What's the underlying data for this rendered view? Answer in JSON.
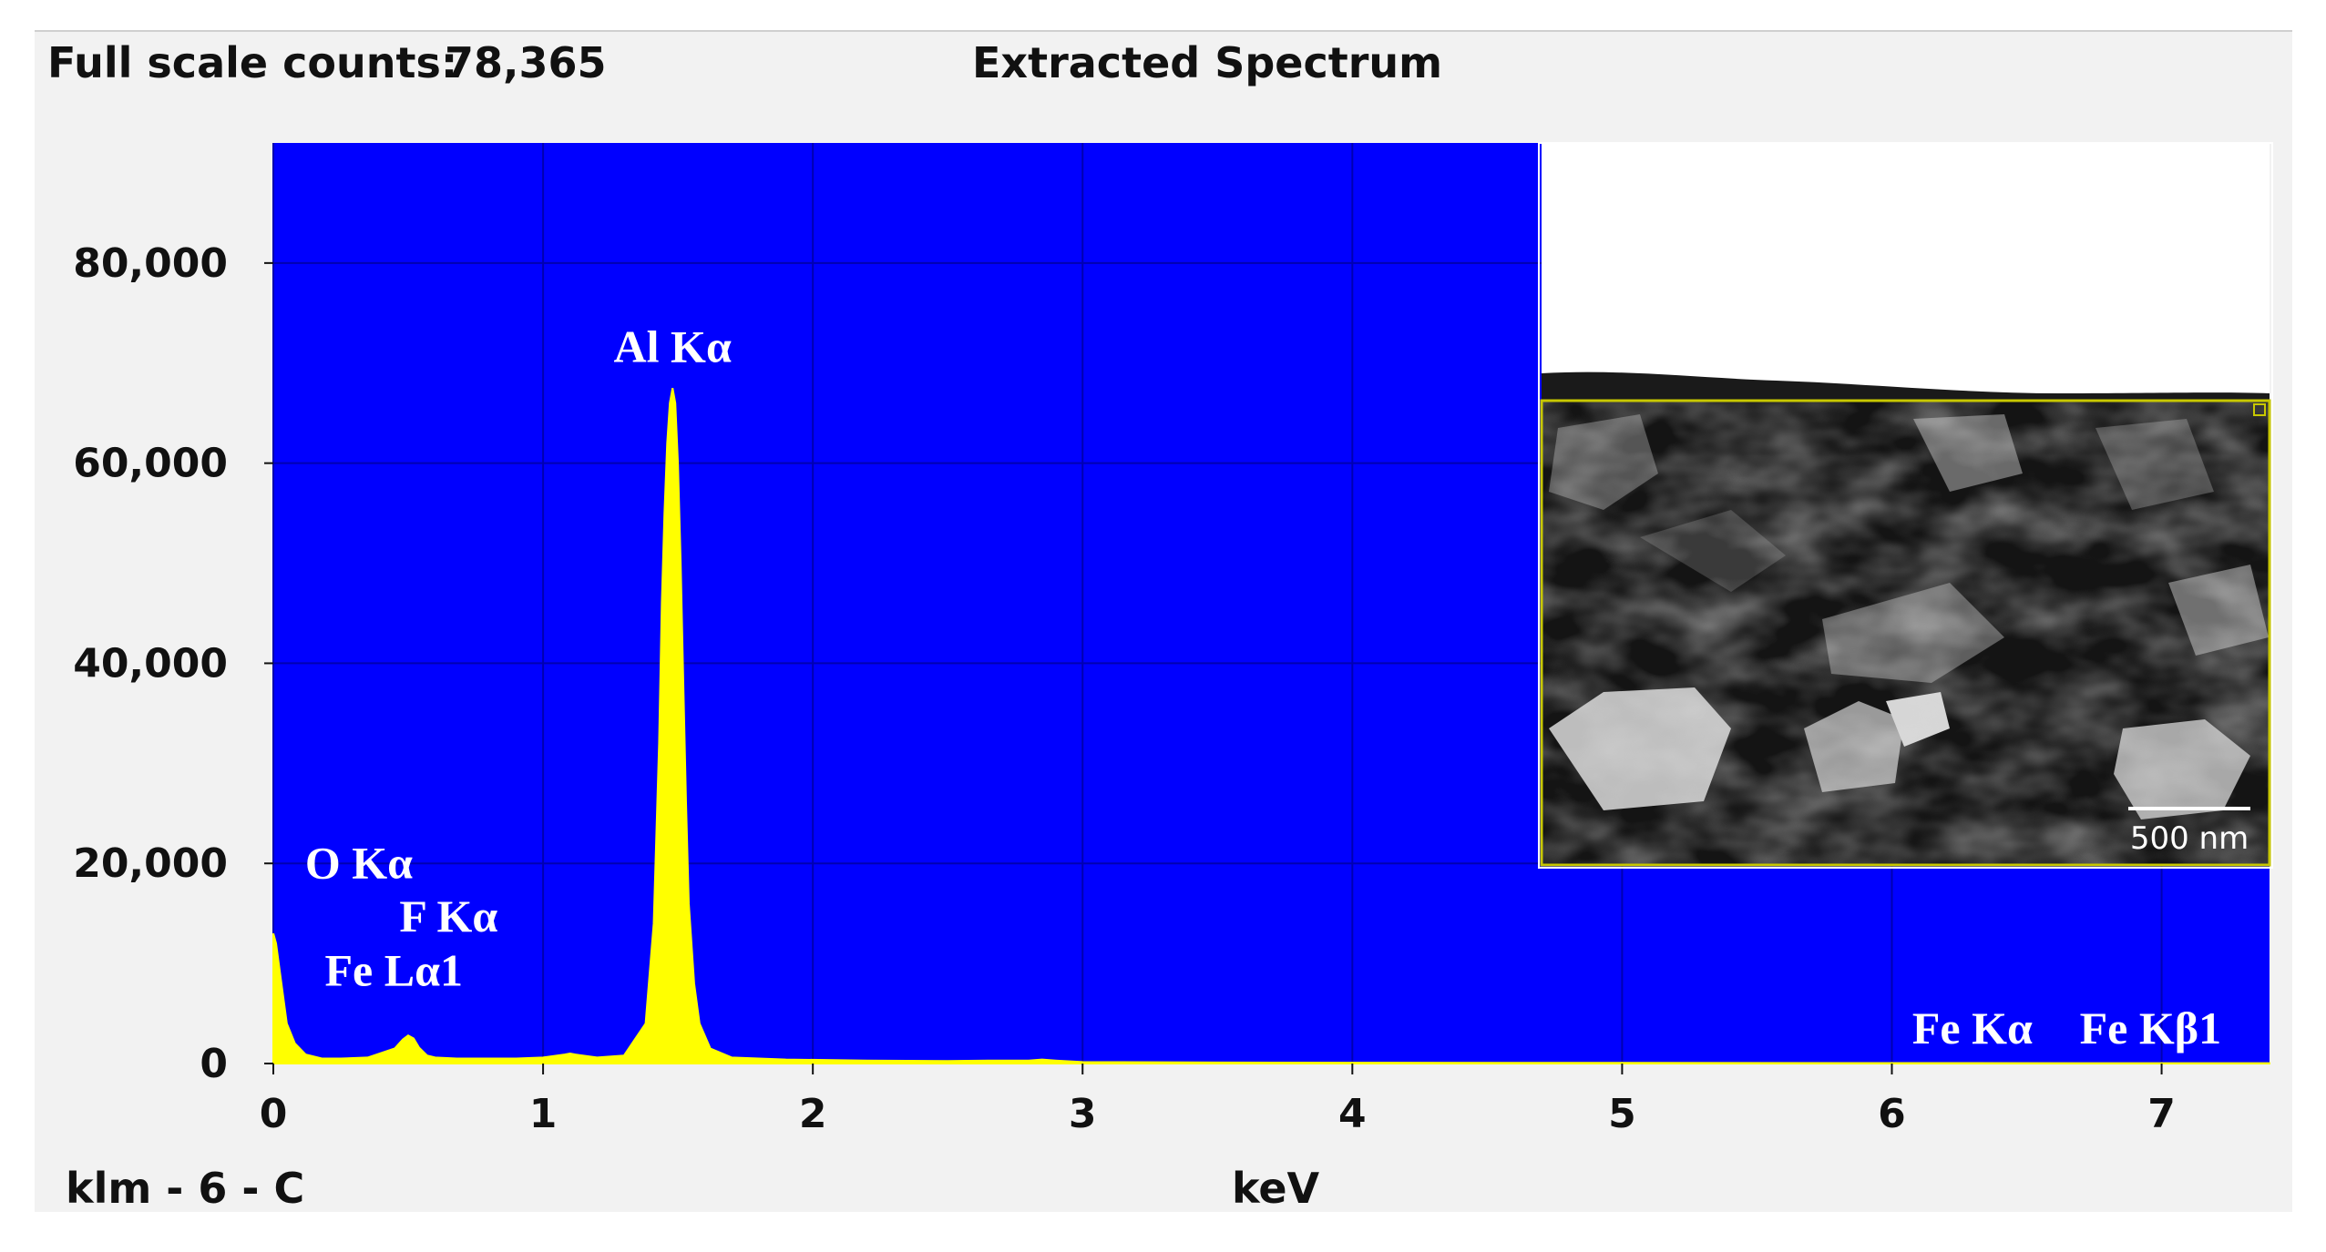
{
  "header": {
    "full_scale_label": "Full scale counts:",
    "full_scale_value": "78,365",
    "title": "Extracted Spectrum"
  },
  "footer": {
    "sample": "klm - 6 - C",
    "xlabel": "keV"
  },
  "colors": {
    "plot_bg": "#0000ff",
    "spectrum": "#ffff00",
    "grid": "#0000b0",
    "peak_label": "#ffffff"
  },
  "inset": {
    "scalebar_label": "500 nm",
    "frame_color": "#c8c800"
  },
  "chart_data": {
    "type": "area",
    "title": "Extracted Spectrum",
    "xlabel": "keV",
    "ylabel": "",
    "xlim": [
      0,
      7.4
    ],
    "ylim": [
      0,
      92000
    ],
    "x_ticks": [
      0,
      1,
      2,
      3,
      4,
      5,
      6,
      7
    ],
    "y_ticks": [
      0,
      20000,
      40000,
      60000,
      80000
    ],
    "y_tick_labels": [
      "0",
      "20,000",
      "40,000",
      "60,000",
      "80,000"
    ],
    "grid": true,
    "series": [
      {
        "x": [
          0.0,
          0.01,
          0.03,
          0.05,
          0.08,
          0.12,
          0.18,
          0.25,
          0.35,
          0.45,
          0.48,
          0.5,
          0.52,
          0.54,
          0.57,
          0.6,
          0.68,
          0.8,
          0.9,
          1.0,
          1.08,
          1.1,
          1.12,
          1.2,
          1.3,
          1.38,
          1.41,
          1.43,
          1.44,
          1.45,
          1.46,
          1.47,
          1.48,
          1.49,
          1.5,
          1.51,
          1.52,
          1.53,
          1.54,
          1.56,
          1.58,
          1.62,
          1.7,
          1.9,
          2.2,
          2.5,
          2.65,
          2.8,
          2.85,
          2.9,
          3.0,
          3.5,
          4.0,
          5.0,
          6.0,
          7.0,
          7.4
        ],
        "y": [
          13000,
          12000,
          8000,
          4000,
          2000,
          900,
          500,
          500,
          600,
          1500,
          2400,
          2800,
          2500,
          1600,
          800,
          600,
          500,
          500,
          500,
          600,
          900,
          1000,
          900,
          600,
          800,
          4000,
          14000,
          32000,
          46000,
          55000,
          62000,
          66000,
          67500,
          66000,
          60000,
          50000,
          38000,
          26000,
          16000,
          8000,
          4000,
          1500,
          600,
          400,
          300,
          250,
          300,
          300,
          400,
          300,
          150,
          100,
          80,
          60,
          50,
          40,
          40
        ]
      }
    ],
    "annotations": [
      {
        "text": "Al Kα",
        "x": 1.48
      },
      {
        "text": "O Kα",
        "x": 0.52
      },
      {
        "text": "F Kα",
        "x": 0.68
      },
      {
        "text": "Fe Lα1",
        "x": 0.7
      },
      {
        "text": "Fe Kα",
        "x": 6.4
      },
      {
        "text": "Fe Kβ1",
        "x": 7.06
      }
    ]
  }
}
